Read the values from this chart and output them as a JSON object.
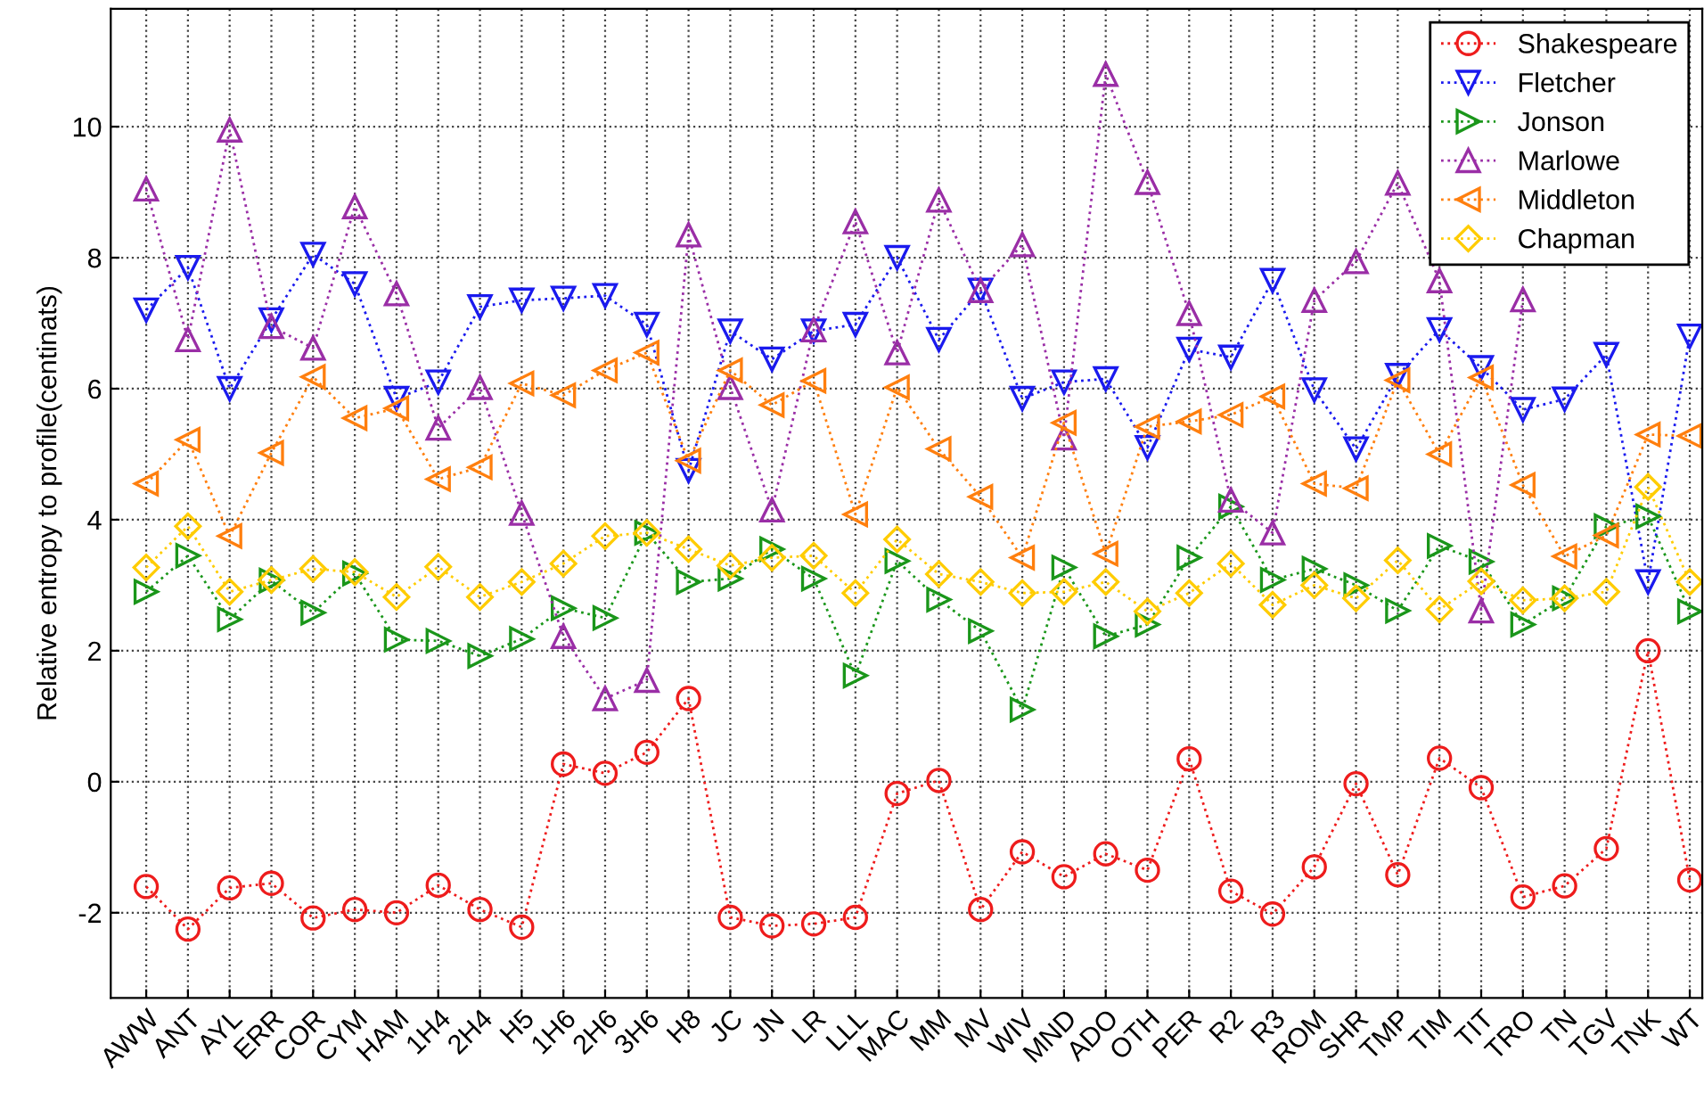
{
  "chart_data": {
    "type": "line",
    "ylabel": "Relative entropy to profile(centinats)",
    "categories": [
      "AWW",
      "ANT",
      "AYL",
      "ERR",
      "COR",
      "CYM",
      "HAM",
      "1H4",
      "2H4",
      "H5",
      "1H6",
      "2H6",
      "3H6",
      "H8",
      "JC",
      "JN",
      "LR",
      "LLL",
      "MAC",
      "MM",
      "MV",
      "WIV",
      "MND",
      "ADO",
      "OTH",
      "PER",
      "R2",
      "R3",
      "ROM",
      "SHR",
      "TMP",
      "TIM",
      "TIT",
      "TRO",
      "TN",
      "TGV",
      "TNK",
      "WT"
    ],
    "series": [
      {
        "name": "Shakespeare",
        "color": "#ee1c1c",
        "marker": "circle",
        "values": [
          -1.6,
          -2.25,
          -1.62,
          -1.55,
          -2.08,
          -1.95,
          -2.0,
          -1.58,
          -1.95,
          -2.22,
          0.27,
          0.13,
          0.45,
          1.27,
          -2.07,
          -2.2,
          -2.17,
          -2.07,
          -0.18,
          0.02,
          -1.95,
          -1.07,
          -1.45,
          -1.1,
          -1.35,
          0.35,
          -1.67,
          -2.02,
          -1.3,
          -0.03,
          -1.42,
          0.36,
          -0.09,
          -1.76,
          -1.59,
          -1.02,
          2.0,
          -1.5
        ]
      },
      {
        "name": "Fletcher",
        "color": "#1a1aee",
        "marker": "triangle_down",
        "values": [
          7.2,
          7.85,
          6.0,
          7.05,
          8.05,
          7.6,
          5.85,
          6.1,
          7.25,
          7.35,
          7.38,
          7.42,
          6.98,
          4.75,
          6.88,
          6.45,
          6.88,
          6.98,
          8.0,
          6.75,
          7.5,
          5.85,
          6.1,
          6.15,
          5.1,
          6.6,
          6.48,
          7.65,
          5.98,
          5.08,
          6.2,
          6.9,
          6.32,
          5.68,
          5.84,
          6.52,
          3.05,
          6.8
        ]
      },
      {
        "name": "Jonson",
        "color": "#1a961a",
        "marker": "triangle_right",
        "values": [
          2.9,
          3.45,
          2.48,
          3.07,
          2.58,
          3.18,
          2.17,
          2.15,
          1.92,
          2.18,
          2.65,
          2.5,
          3.8,
          3.05,
          3.1,
          3.55,
          3.1,
          1.62,
          3.37,
          2.78,
          2.3,
          1.1,
          3.27,
          2.22,
          2.4,
          3.42,
          4.2,
          3.08,
          3.25,
          3.0,
          2.61,
          3.6,
          3.36,
          2.4,
          2.8,
          3.9,
          4.05,
          2.6
        ]
      },
      {
        "name": "Marlowe",
        "color": "#9a2ea6",
        "marker": "triangle",
        "values": [
          9.05,
          6.75,
          9.95,
          6.95,
          6.62,
          8.78,
          7.45,
          5.4,
          6.02,
          4.1,
          2.22,
          1.27,
          1.55,
          8.35,
          6.02,
          4.15,
          6.9,
          8.55,
          6.55,
          8.88,
          7.5,
          8.2,
          5.25,
          10.8,
          9.15,
          7.15,
          4.3,
          3.8,
          7.35,
          7.94,
          9.14,
          7.65,
          2.61,
          7.36,
          null,
          null,
          null,
          null
        ]
      },
      {
        "name": "Middleton",
        "color": "#ff7f0e",
        "marker": "triangle_left",
        "values": [
          4.55,
          5.22,
          3.75,
          5.02,
          6.18,
          5.55,
          5.7,
          4.62,
          4.8,
          6.08,
          5.9,
          6.28,
          6.55,
          4.9,
          6.28,
          5.75,
          6.12,
          4.08,
          6.02,
          5.08,
          4.35,
          3.42,
          5.48,
          3.48,
          5.42,
          5.5,
          5.6,
          5.88,
          4.55,
          4.48,
          6.13,
          5.0,
          6.17,
          4.53,
          3.44,
          3.76,
          5.3,
          5.28
        ]
      },
      {
        "name": "Chapman",
        "color": "#ffcc00",
        "marker": "diamond",
        "values": [
          3.27,
          3.9,
          2.9,
          3.08,
          3.25,
          3.2,
          2.82,
          3.28,
          2.82,
          3.05,
          3.33,
          3.75,
          3.8,
          3.55,
          3.3,
          3.42,
          3.45,
          2.88,
          3.7,
          3.17,
          3.05,
          2.88,
          2.9,
          3.05,
          2.6,
          2.88,
          3.33,
          2.7,
          3.0,
          2.8,
          3.38,
          2.63,
          3.06,
          2.77,
          2.8,
          2.9,
          4.5,
          3.05
        ]
      }
    ],
    "ylim": [
      -3.3,
      11.8
    ],
    "yticks": [
      -2,
      0,
      2,
      4,
      6,
      8,
      10
    ],
    "grid": true,
    "legend": "top right",
    "line_style": "dotted"
  }
}
